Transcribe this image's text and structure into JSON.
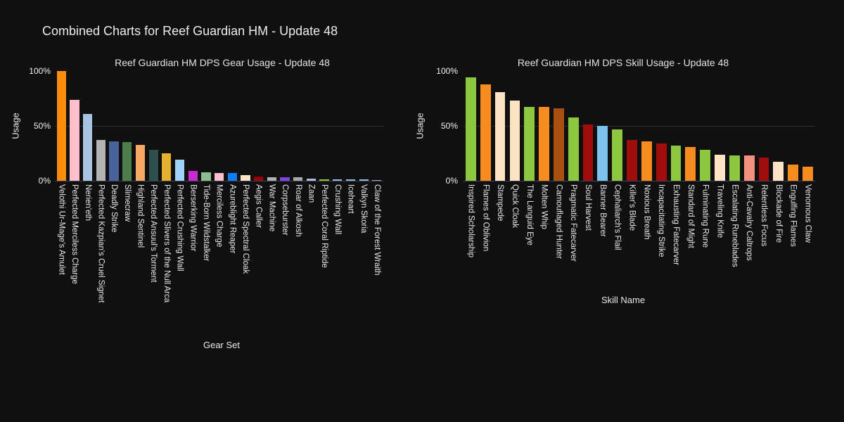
{
  "page_title": "Combined Charts for Reef Guardian HM - Update 48",
  "theme": {
    "background": "#101010",
    "text_color": "#e8e8e8",
    "gridline_color": "#262d3b",
    "baseline_color": "#3c4350"
  },
  "chart_data": [
    {
      "type": "bar",
      "title": "Reef Guardian HM DPS Gear Usage - Update 48",
      "xlabel": "Gear Set",
      "ylabel": "Usage",
      "ylim": [
        0,
        100
      ],
      "ytick_labels": [
        "0%",
        "50%",
        "100%"
      ],
      "grid": "horizontal line at 50% only",
      "legend": "none",
      "categories": [
        "Velothi Ur-Mage's Amulet",
        "Perfected Merciless Charge",
        "Nerien'eth",
        "Perfected Kazpian's Cruel Signet",
        "Deadly Strike",
        "Slimecraw",
        "Highland Sentinel",
        "Perfected Ansuul's Torment",
        "Perfected Slivers of the Null Arca",
        "Perfected Crushing Wall",
        "Berserking Warrior",
        "Tide-Born Wildstalker",
        "Merciless Charge",
        "Azureblight Reaper",
        "Perfected Spectral Cloak",
        "Aegis Caller",
        "War Machine",
        "Corpseburster",
        "Roar of Alkosh",
        "Zaan",
        "Perfected Coral Riptide",
        "Crushing Wall",
        "Iceheart",
        "Valkyn Skoria",
        "Claw of the Forest Wraith"
      ],
      "values": [
        100,
        74,
        61,
        37,
        36,
        35,
        33,
        28,
        25,
        19,
        9,
        8,
        7,
        7,
        5,
        4,
        3,
        3,
        3,
        2,
        1.5,
        1.2,
        1,
        1,
        0.7
      ],
      "colors": [
        "#ff8c0a",
        "#ffc0cb",
        "#a9c4e2",
        "#b3b3b3",
        "#48629b",
        "#4d7d4a",
        "#f7a964",
        "#2f4f4f",
        "#e3b02f",
        "#a0d2ff",
        "#c92ad1",
        "#8fbc8f",
        "#ffc0cb",
        "#0d7ef5",
        "#ffe4c4",
        "#990000",
        "#b0b0b0",
        "#7d44e0",
        "#a9a9a9",
        "#a9c1dd",
        "#8ac72c",
        "#94b8dc",
        "#94b8dc",
        "#94b8dc",
        "#9aa8b8"
      ]
    },
    {
      "type": "bar",
      "title": "Reef Guardian HM DPS Skill Usage - Update 48",
      "xlabel": "Skill Name",
      "ylabel": "Usage",
      "ylim": [
        0,
        100
      ],
      "ytick_labels": [
        "0%",
        "50%",
        "100%"
      ],
      "grid": "horizontal line at 50% only",
      "legend": "none",
      "categories": [
        "Inspired Scholarship",
        "Flames of Oblivion",
        "Stampede",
        "Quick Cloak",
        "The Languid Eye",
        "Molten Whip",
        "Camouflaged Hunter",
        "Pragmatic Fatecarver",
        "Soul Harvest",
        "Banner Bearer",
        "Cephaliarch's Flail",
        "Killer's Blade",
        "Noxious Breath",
        "Incapacitating Strike",
        "Exhausting Fatecarver",
        "Standard of Might",
        "Fulminating Rune",
        "Traveling Knife",
        "Escalating Runeblades",
        "Anti-Cavalry Caltrops",
        "Relentless Focus",
        "Blockade of Fire",
        "Engulfing Flames",
        "Venomous Claw"
      ],
      "values": [
        94,
        88,
        81,
        73,
        67,
        67,
        66,
        58,
        51,
        50,
        47,
        37,
        36,
        34,
        32,
        31,
        28,
        24,
        23,
        23,
        21,
        17,
        15,
        13
      ],
      "colors": [
        "#8dc63f",
        "#f68b1f",
        "#fbe3c4",
        "#fbe3c4",
        "#8dc63f",
        "#f68b1f",
        "#a8500f",
        "#8dc63f",
        "#a00d0d",
        "#7ec2ee",
        "#8dc63f",
        "#a00d0d",
        "#f68b1f",
        "#a00d0d",
        "#8dc63f",
        "#f68b1f",
        "#8dc63f",
        "#fbe3c4",
        "#8dc63f",
        "#f2917f",
        "#a00d0d",
        "#fbe3c4",
        "#f68b1f",
        "#f68b1f"
      ]
    }
  ]
}
